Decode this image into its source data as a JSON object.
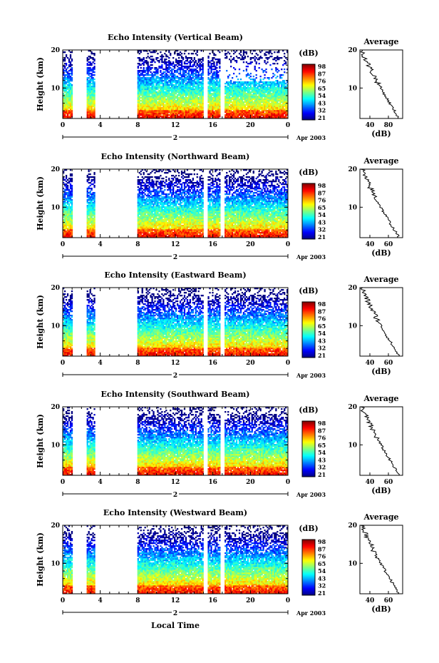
{
  "figure": {
    "xlabel": "Local Time",
    "date_label": "Apr 2003",
    "day_label": "2",
    "colorbar_unit": "(dB)",
    "colorbar_ticks": [
      "98",
      "87",
      "76",
      "65",
      "54",
      "43",
      "32",
      "21"
    ],
    "average_title": "Average",
    "average_xlabel": "(dB)"
  },
  "chart_data": [
    {
      "type": "heatmap",
      "title": "Echo Intensity (Vertical Beam)",
      "ylabel": "Height (km)",
      "xlabel": "Local Time",
      "x_ticks": [
        "0",
        "4",
        "8",
        "12",
        "16",
        "20",
        "0"
      ],
      "y_ticks": [
        "20",
        "10"
      ],
      "xlim": [
        0,
        24
      ],
      "ylim": [
        2,
        20
      ],
      "z_unit": "dB",
      "zlim": [
        21,
        98
      ],
      "data_gaps_hours": [
        [
          1,
          2.6
        ],
        [
          3.4,
          8
        ],
        [
          15,
          15.5
        ],
        [
          16.8,
          17.2
        ]
      ],
      "profile": {
        "title": "Average",
        "xlabel": "(dB)",
        "x_ticks": [
          "40",
          "80"
        ],
        "y_ticks": [
          "20",
          "10"
        ]
      }
    },
    {
      "type": "heatmap",
      "title": "Echo Intensity (Northward Beam)",
      "ylabel": "Height (km)",
      "xlabel": "Local Time",
      "x_ticks": [
        "0",
        "4",
        "8",
        "12",
        "16",
        "20",
        "0"
      ],
      "y_ticks": [
        "20",
        "10"
      ],
      "xlim": [
        0,
        24
      ],
      "ylim": [
        2,
        20
      ],
      "z_unit": "dB",
      "zlim": [
        21,
        98
      ],
      "data_gaps_hours": [
        [
          1,
          2.6
        ],
        [
          3.4,
          8
        ],
        [
          15,
          15.5
        ],
        [
          16.8,
          17.2
        ]
      ],
      "profile": {
        "title": "Average",
        "xlabel": "(dB)",
        "x_ticks": [
          "40",
          "60"
        ],
        "y_ticks": [
          "20",
          "10"
        ]
      }
    },
    {
      "type": "heatmap",
      "title": "Echo Intensity (Eastward Beam)",
      "ylabel": "Height (km)",
      "xlabel": "Local Time",
      "x_ticks": [
        "0",
        "4",
        "8",
        "12",
        "16",
        "20",
        "0"
      ],
      "y_ticks": [
        "20",
        "10"
      ],
      "xlim": [
        0,
        24
      ],
      "ylim": [
        2,
        20
      ],
      "z_unit": "dB",
      "zlim": [
        21,
        98
      ],
      "data_gaps_hours": [
        [
          1,
          2.6
        ],
        [
          3.4,
          8
        ],
        [
          15,
          15.5
        ],
        [
          16.8,
          17.2
        ]
      ],
      "profile": {
        "title": "Average",
        "xlabel": "(dB)",
        "x_ticks": [
          "40",
          "60"
        ],
        "y_ticks": [
          "20",
          "10"
        ]
      }
    },
    {
      "type": "heatmap",
      "title": "Echo Intensity (Southward Beam)",
      "ylabel": "Height (km)",
      "xlabel": "Local Time",
      "x_ticks": [
        "0",
        "4",
        "8",
        "12",
        "16",
        "20",
        "0"
      ],
      "y_ticks": [
        "20",
        "10"
      ],
      "xlim": [
        0,
        24
      ],
      "ylim": [
        2,
        20
      ],
      "z_unit": "dB",
      "zlim": [
        21,
        98
      ],
      "data_gaps_hours": [
        [
          1,
          2.6
        ],
        [
          3.4,
          8
        ],
        [
          15,
          15.5
        ],
        [
          16.8,
          17.2
        ]
      ],
      "profile": {
        "title": "Average",
        "xlabel": "(dB)",
        "x_ticks": [
          "40",
          "60"
        ],
        "y_ticks": [
          "20",
          "10"
        ]
      }
    },
    {
      "type": "heatmap",
      "title": "Echo Intensity (Westward Beam)",
      "ylabel": "Height (km)",
      "xlabel": "Local Time",
      "x_ticks": [
        "0",
        "4",
        "8",
        "12",
        "16",
        "20",
        "0"
      ],
      "y_ticks": [
        "20",
        "10"
      ],
      "xlim": [
        0,
        24
      ],
      "ylim": [
        2,
        20
      ],
      "z_unit": "dB",
      "zlim": [
        21,
        98
      ],
      "data_gaps_hours": [
        [
          1,
          2.6
        ],
        [
          3.4,
          8
        ],
        [
          15,
          15.5
        ],
        [
          16.8,
          17.2
        ]
      ],
      "profile": {
        "title": "Average",
        "xlabel": "(dB)",
        "x_ticks": [
          "40",
          "60"
        ],
        "y_ticks": [
          "20",
          "10"
        ]
      }
    }
  ]
}
